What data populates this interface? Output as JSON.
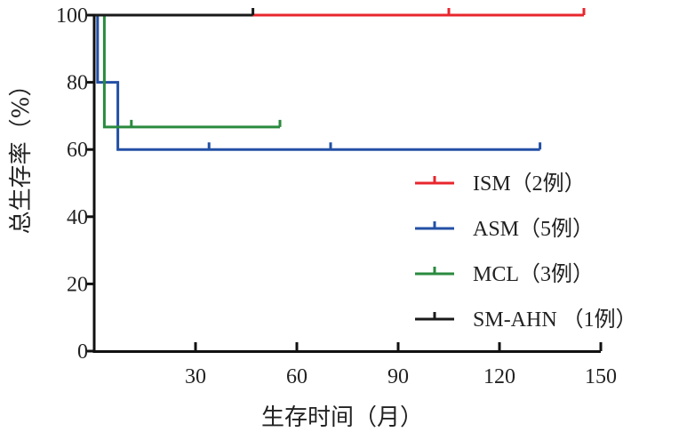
{
  "chart_data": {
    "type": "line",
    "xlabel": "生存时间（月）",
    "ylabel": "总生存率（%）",
    "xlim": [
      0,
      150
    ],
    "ylim": [
      0,
      100
    ],
    "x_ticks": [
      30,
      60,
      90,
      120,
      150
    ],
    "y_ticks": [
      0,
      20,
      40,
      60,
      80,
      100
    ],
    "grid": false,
    "legend_position": "bottom-right",
    "series": [
      {
        "name": "ISM（2例）",
        "color": "#e8262d",
        "steps": [
          [
            0,
            100
          ],
          [
            145,
            100
          ]
        ],
        "censored": [
          105,
          145
        ]
      },
      {
        "name": "ASM（5例）",
        "color": "#2350a5",
        "steps": [
          [
            0,
            100
          ],
          [
            1,
            80
          ],
          [
            7,
            60
          ],
          [
            132,
            60
          ]
        ],
        "censored": [
          34,
          70,
          132
        ]
      },
      {
        "name": "MCL（3例）",
        "color": "#2a8a3e",
        "steps": [
          [
            0,
            100
          ],
          [
            3,
            66.7
          ],
          [
            55,
            66.7
          ]
        ],
        "censored": [
          11,
          55
        ]
      },
      {
        "name": "SM-AHN （1例）",
        "color": "#1a1a1a",
        "steps": [
          [
            0,
            100
          ],
          [
            47,
            100
          ]
        ],
        "censored": [
          47
        ]
      }
    ]
  }
}
